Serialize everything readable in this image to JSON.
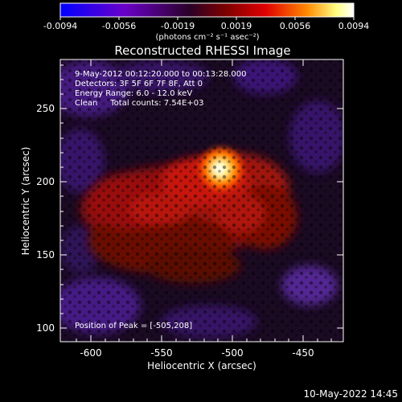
{
  "colorbar": {
    "ticks": [
      "-0.0094",
      "-0.0056",
      "-0.0019",
      "0.0019",
      "0.0056",
      "0.0094"
    ],
    "unit_label": "(photons cm⁻² s⁻¹ asec⁻²)",
    "colors": [
      "#0000ff",
      "#6a00c8",
      "#2a0028",
      "#7a0000",
      "#e00000",
      "#ff8800",
      "#ffff80",
      "#ffffff"
    ]
  },
  "title": "Reconstructed RHESSI Image",
  "info": {
    "line1": "9-May-2012 00:12:20.000 to 00:13:28.000",
    "line2": "Detectors: 3F 5F 6F 7F 8F, Att 0",
    "line3": "Energy Range: 6.0 - 12.0 keV",
    "line4": "Clean     Total counts: 7.54E+03"
  },
  "peak_label": "Position of Peak = [-505,208]",
  "axes": {
    "xlabel": "Heliocentric X (arcsec)",
    "ylabel": "Heliocentric Y (arcsec)",
    "xticks": [
      "-600",
      "-550",
      "-500",
      "-450"
    ],
    "yticks": [
      "100",
      "150",
      "200",
      "250"
    ]
  },
  "timestamp": "10-May-2022 14:45"
}
